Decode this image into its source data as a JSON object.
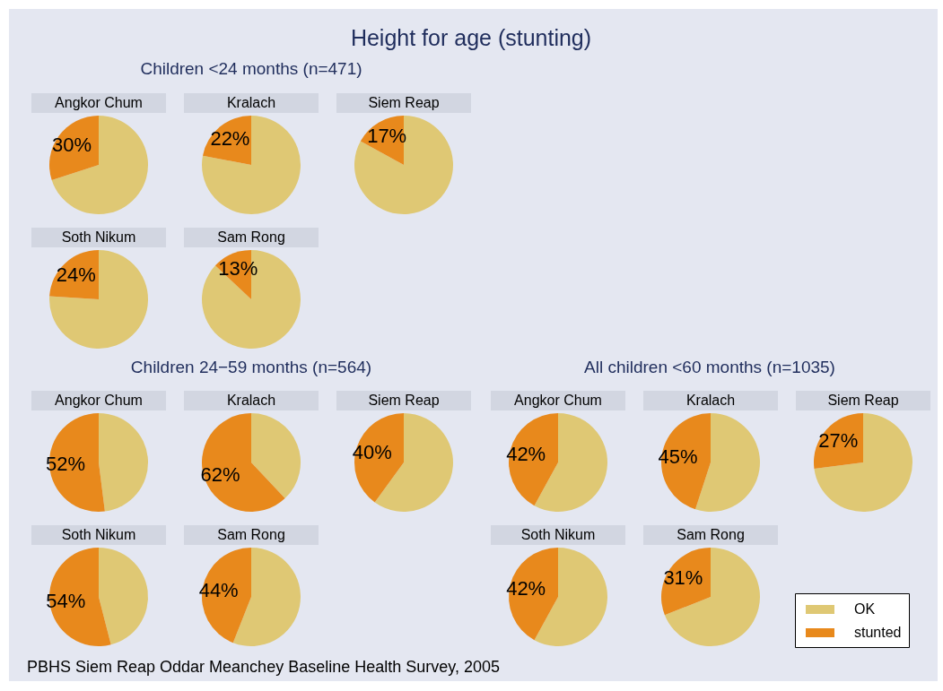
{
  "chart_data": [
    {
      "type": "other",
      "title": "Height for age (stunting)",
      "annotations": [
        "Children <24 months (n=471)",
        "Children 24−59 months (n=564)",
        "All children <60 months (n=1035)",
        "PBHS Siem Reap Oddar Meanchey Baseline Health Survey, 2005"
      ]
    },
    {
      "type": "pie",
      "title": "Angkor Chum",
      "categories": [
        null,
        null
      ],
      "values": [
        70,
        30
      ],
      "colors": [
        "#dfc874",
        "#e8891c"
      ],
      "value_labels": [
        null,
        "30%"
      ]
    },
    {
      "type": "pie",
      "title": "Kralach",
      "categories": [
        null,
        null
      ],
      "values": [
        78,
        22
      ],
      "colors": [
        "#dfc874",
        "#e8891c"
      ],
      "value_labels": [
        null,
        "22%"
      ]
    },
    {
      "type": "pie",
      "title": "Siem Reap",
      "categories": [
        null,
        null
      ],
      "values": [
        83,
        17
      ],
      "colors": [
        "#dfc874",
        "#e8891c"
      ],
      "value_labels": [
        null,
        "17%"
      ]
    },
    {
      "type": "pie",
      "title": "Soth Nikum",
      "categories": [
        null,
        null
      ],
      "values": [
        76,
        24
      ],
      "colors": [
        "#dfc874",
        "#e8891c"
      ],
      "value_labels": [
        null,
        "24%"
      ]
    },
    {
      "type": "pie",
      "title": "Sam Rong",
      "categories": [
        null,
        null
      ],
      "values": [
        87,
        13
      ],
      "colors": [
        "#dfc874",
        "#e8891c"
      ],
      "value_labels": [
        null,
        "13%"
      ]
    },
    {
      "type": "pie",
      "title": "Angkor Chum",
      "categories": [
        null,
        null
      ],
      "values": [
        48,
        52
      ],
      "colors": [
        "#dfc874",
        "#e8891c"
      ],
      "value_labels": [
        null,
        "52%"
      ]
    },
    {
      "type": "pie",
      "title": "Kralach",
      "categories": [
        null,
        null
      ],
      "values": [
        38,
        62
      ],
      "colors": [
        "#dfc874",
        "#e8891c"
      ],
      "value_labels": [
        null,
        "62%"
      ]
    },
    {
      "type": "pie",
      "title": "Siem Reap",
      "categories": [
        null,
        null
      ],
      "values": [
        60,
        40
      ],
      "colors": [
        "#dfc874",
        "#e8891c"
      ],
      "value_labels": [
        null,
        "40%"
      ]
    },
    {
      "type": "pie",
      "title": "Soth Nikum",
      "categories": [
        null,
        null
      ],
      "values": [
        46,
        54
      ],
      "colors": [
        "#dfc874",
        "#e8891c"
      ],
      "value_labels": [
        null,
        "54%"
      ]
    },
    {
      "type": "pie",
      "title": "Sam Rong",
      "categories": [
        null,
        null
      ],
      "values": [
        56,
        44
      ],
      "colors": [
        "#dfc874",
        "#e8891c"
      ],
      "value_labels": [
        null,
        "44%"
      ]
    },
    {
      "type": "pie",
      "title": "Angkor Chum",
      "categories": [
        null,
        null
      ],
      "values": [
        58,
        42
      ],
      "colors": [
        "#dfc874",
        "#e8891c"
      ],
      "value_labels": [
        null,
        "42%"
      ]
    },
    {
      "type": "pie",
      "title": "Kralach",
      "categories": [
        null,
        null
      ],
      "values": [
        55,
        45
      ],
      "colors": [
        "#dfc874",
        "#e8891c"
      ],
      "value_labels": [
        null,
        "45%"
      ]
    },
    {
      "type": "pie",
      "title": "Siem Reap",
      "categories": [
        null,
        null
      ],
      "values": [
        73,
        27
      ],
      "colors": [
        "#dfc874",
        "#e8891c"
      ],
      "value_labels": [
        null,
        "27%"
      ]
    },
    {
      "type": "pie",
      "title": "Soth Nikum",
      "categories": [
        null,
        null
      ],
      "values": [
        58,
        42
      ],
      "colors": [
        "#dfc874",
        "#e8891c"
      ],
      "value_labels": [
        null,
        "42%"
      ]
    },
    {
      "type": "pie",
      "title": "Sam Rong",
      "categories": [
        "OK",
        "stunted"
      ],
      "values": [
        69,
        31
      ],
      "colors": [
        "#dfc874",
        "#e8891c"
      ],
      "value_labels": [
        null,
        "31%"
      ],
      "legend": "bottom right"
    }
  ]
}
